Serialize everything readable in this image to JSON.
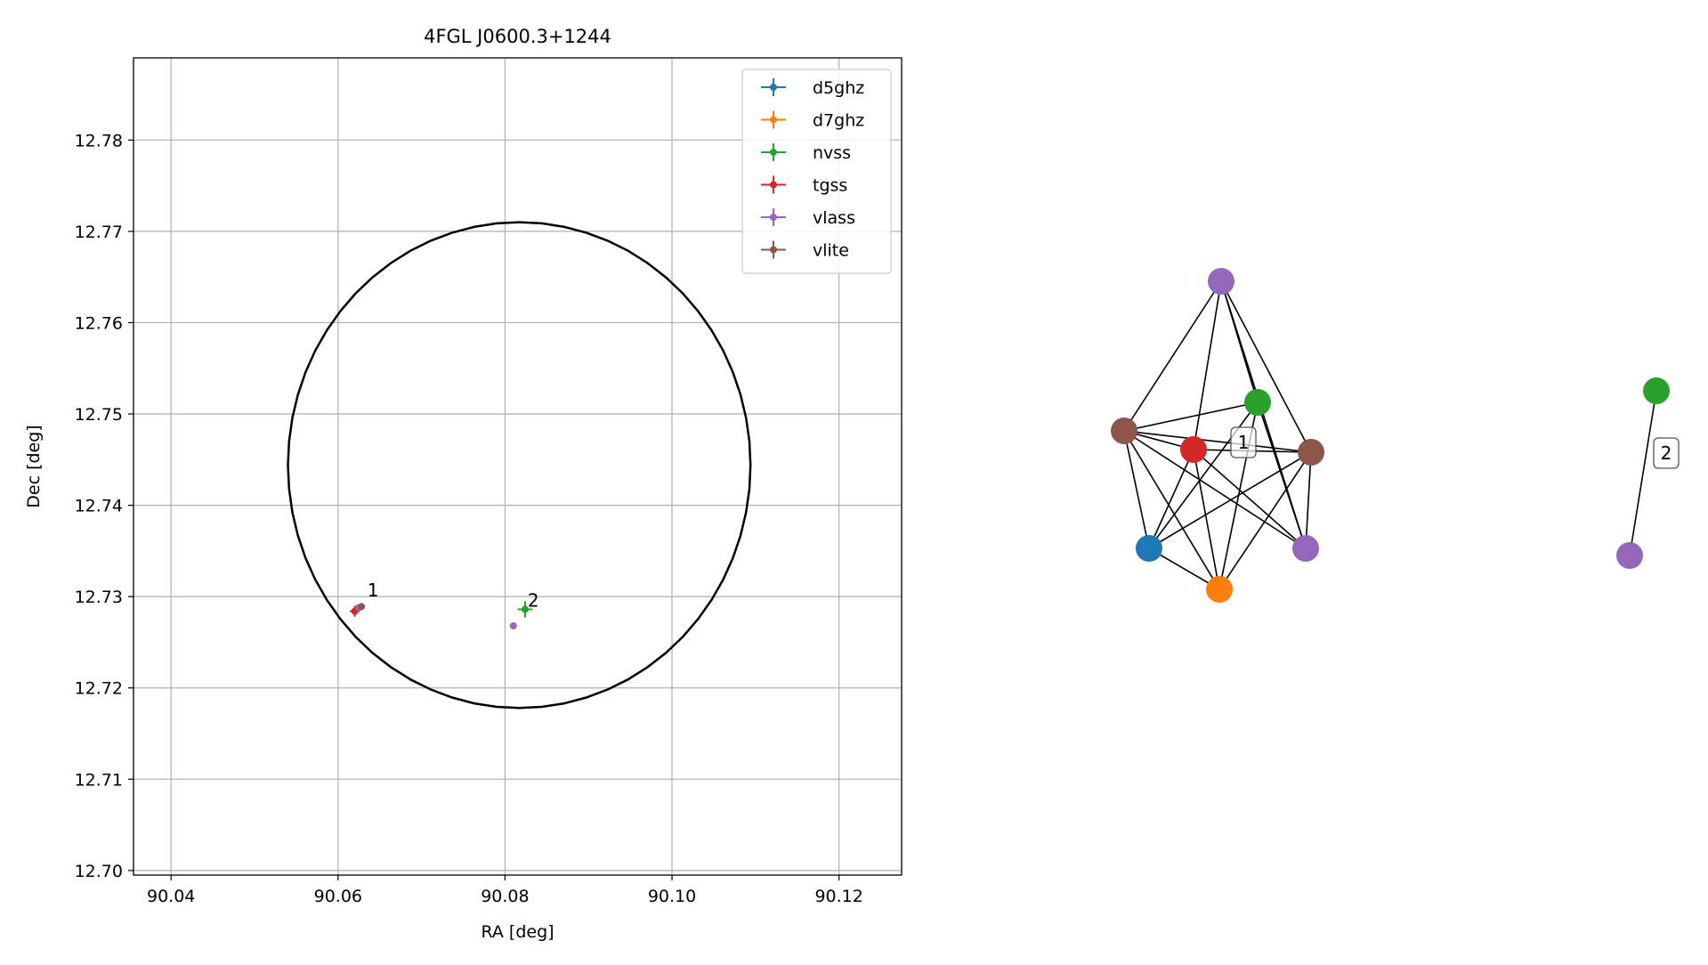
{
  "chart_data": [
    {
      "type": "scatter",
      "title": "4FGL J0600.3+1244",
      "xlabel": "RA [deg]",
      "ylabel": "Dec [deg]",
      "xlim": [
        90.0355,
        90.1275
      ],
      "ylim": [
        12.6995,
        12.789
      ],
      "xticks": [
        90.04,
        90.06,
        90.08,
        90.1,
        90.12
      ],
      "xtick_labels": [
        "90.04",
        "90.06",
        "90.08",
        "90.10",
        "90.12"
      ],
      "yticks": [
        12.7,
        12.71,
        12.72,
        12.73,
        12.74,
        12.75,
        12.76,
        12.77,
        12.78
      ],
      "ytick_labels": [
        "12.70",
        "12.71",
        "12.72",
        "12.73",
        "12.74",
        "12.75",
        "12.76",
        "12.77",
        "12.78"
      ],
      "grid": true,
      "legend_position": "top-right",
      "series": [
        {
          "name": "d5ghz",
          "color": "#1f77b4",
          "points": []
        },
        {
          "name": "d7ghz",
          "color": "#ff7f0e",
          "points": []
        },
        {
          "name": "nvss",
          "color": "#2ca02c",
          "points": [
            {
              "x": 90.0824,
              "y": 12.7286,
              "xerr": 0.0009,
              "yerr": 0.0009
            }
          ]
        },
        {
          "name": "tgss",
          "color": "#d62728",
          "points": [
            {
              "x": 90.062,
              "y": 12.7284,
              "xerr": 0.0006,
              "yerr": 0.0006
            }
          ]
        },
        {
          "name": "vlass",
          "color": "#9467bd",
          "points": [
            {
              "x": 90.081,
              "y": 12.7268,
              "xerr": 0.0001,
              "yerr": 0.0001
            },
            {
              "x": 90.0625,
              "y": 12.7288,
              "xerr": 0.0001,
              "yerr": 0.0001
            }
          ]
        },
        {
          "name": "vlite",
          "color": "#8c564b",
          "points": [
            {
              "x": 90.0628,
              "y": 12.7289,
              "xerr": 0.0004,
              "yerr": 0.0004
            }
          ]
        }
      ],
      "ellipse": {
        "center_ra": 90.0817,
        "center_dec": 12.7444,
        "semi_major": 0.0277,
        "semi_minor": 0.0266,
        "color": "#000000"
      },
      "annotations": [
        {
          "text": "1",
          "x": 90.0634,
          "y": 12.7301
        },
        {
          "text": "2",
          "x": 90.0826,
          "y": 12.729
        }
      ]
    },
    {
      "type": "network",
      "clusters": [
        {
          "label": "1",
          "nodes": [
            {
              "id": "vlass_a",
              "color": "#9467bd"
            },
            {
              "id": "vlite_a",
              "color": "#8c564b"
            },
            {
              "id": "nvss_a",
              "color": "#2ca02c"
            },
            {
              "id": "tgss_a",
              "color": "#d62728"
            },
            {
              "id": "vlite_b",
              "color": "#8c564b"
            },
            {
              "id": "d5ghz_a",
              "color": "#1f77b4"
            },
            {
              "id": "vlass_b",
              "color": "#9467bd"
            },
            {
              "id": "d7ghz_a",
              "color": "#ff7f0e"
            }
          ],
          "edges": [
            [
              "vlass_a",
              "vlite_a"
            ],
            [
              "vlass_a",
              "tgss_a"
            ],
            [
              "vlass_a",
              "nvss_a"
            ],
            [
              "vlass_a",
              "vlite_b"
            ],
            [
              "vlass_a",
              "vlass_b"
            ],
            [
              "vlite_a",
              "tgss_a"
            ],
            [
              "vlite_a",
              "nvss_a"
            ],
            [
              "vlite_a",
              "vlite_b"
            ],
            [
              "vlite_a",
              "d5ghz_a"
            ],
            [
              "vlite_a",
              "vlass_b"
            ],
            [
              "vlite_a",
              "d7ghz_a"
            ],
            [
              "tgss_a",
              "vlite_b"
            ],
            [
              "tgss_a",
              "d5ghz_a"
            ],
            [
              "tgss_a",
              "vlass_b"
            ],
            [
              "tgss_a",
              "d7ghz_a"
            ],
            [
              "nvss_a",
              "d5ghz_a"
            ],
            [
              "nvss_a",
              "vlass_b"
            ],
            [
              "nvss_a",
              "d7ghz_a"
            ],
            [
              "vlite_b",
              "d5ghz_a"
            ],
            [
              "vlite_b",
              "vlass_b"
            ],
            [
              "vlite_b",
              "d7ghz_a"
            ],
            [
              "d5ghz_a",
              "d7ghz_a"
            ]
          ]
        },
        {
          "label": "2",
          "nodes": [
            {
              "id": "nvss_b",
              "color": "#2ca02c"
            },
            {
              "id": "vlass_c",
              "color": "#9467bd"
            }
          ],
          "edges": [
            [
              "nvss_b",
              "vlass_c"
            ]
          ]
        }
      ]
    }
  ]
}
